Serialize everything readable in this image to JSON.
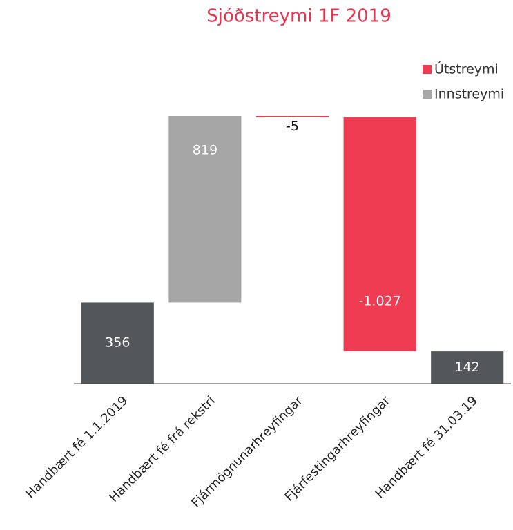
{
  "chart_data": {
    "type": "waterfall",
    "title": "Sjóðstreymi 1F 2019",
    "categories": [
      "Handbært fé 1.1.2019",
      "Handbært fé frá rekstri",
      "Fjármögnunarhreyfingar",
      "Fjárfestingarhreyfingar",
      "Handbært fé 31.03.19"
    ],
    "values": [
      356,
      819,
      -5,
      -1027,
      142
    ],
    "value_labels": [
      "356",
      "819",
      "-5",
      "-1.027",
      "142"
    ],
    "colors": [
      "#545759",
      "#a6a6a6",
      "#ee3d53",
      "#ee3d53",
      "#545759"
    ],
    "legend": [
      {
        "name": "Útstreymi",
        "color": "#ee3d53"
      },
      {
        "name": "Innstreymi",
        "color": "#a6a6a6"
      }
    ],
    "ylim": [
      0,
      1175
    ]
  }
}
